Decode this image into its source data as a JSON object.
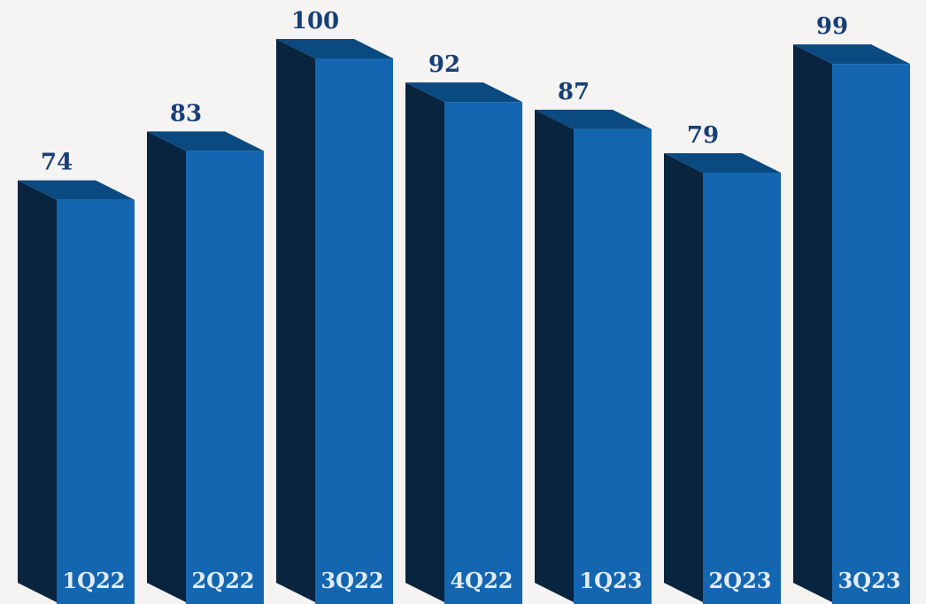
{
  "colors": {
    "background": "#f6f4f3",
    "bar_front": "#1466b1",
    "bar_side": "#08243f",
    "bar_top": "#0a4a80",
    "value_label": "#173f76",
    "category_label": "#e3ebf5"
  },
  "chart_data": {
    "type": "bar",
    "style": "3d",
    "categories": [
      "1Q22",
      "2Q22",
      "3Q22",
      "4Q22",
      "1Q23",
      "2Q23",
      "3Q23"
    ],
    "values": [
      74,
      83,
      100,
      92,
      87,
      79,
      99
    ],
    "title": "",
    "xlabel": "",
    "ylabel": "",
    "ylim": [
      0,
      100
    ],
    "grid": false,
    "legend": "none",
    "data_labels": true
  }
}
